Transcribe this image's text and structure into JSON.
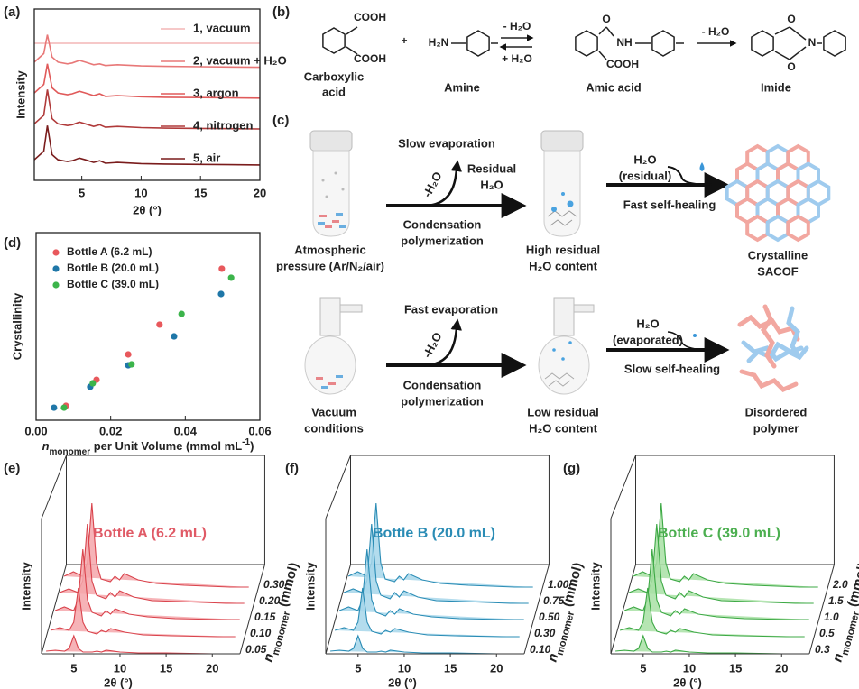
{
  "panel_labels": [
    "(a)",
    "(b)",
    "(c)",
    "(d)",
    "(e)",
    "(f)",
    "(g)"
  ],
  "chart_data": [
    {
      "type": "line",
      "xlabel": "2θ (°)",
      "ylabel": "Intensity",
      "x": [
        1,
        1.8,
        2.1,
        2.5,
        3,
        3.8,
        4.2,
        4.8,
        5.3,
        6,
        6.5,
        7,
        8,
        10,
        12,
        15,
        20
      ],
      "xlim": [
        1,
        20
      ],
      "xticks": [
        5,
        10,
        15,
        20
      ],
      "ylim": [
        0,
        100
      ],
      "series": [
        {
          "name": "1, vacuum",
          "color": "#f4b6b6",
          "values": [
            80,
            80,
            80,
            80,
            80,
            80,
            80,
            80,
            80,
            80,
            80,
            80,
            80,
            80,
            80,
            80,
            80
          ]
        },
        {
          "name": "2, vacuum + H₂O",
          "color": "#e87878",
          "values": [
            69,
            74,
            85,
            72,
            69,
            68,
            68.5,
            70,
            69,
            67.5,
            68,
            67,
            67.5,
            66.8,
            66.5,
            66.3,
            66
          ]
        },
        {
          "name": "3, argon",
          "color": "#e05a5a",
          "values": [
            51,
            56,
            68,
            54,
            51,
            50,
            50.5,
            52,
            51,
            49.5,
            50.5,
            49,
            49.5,
            48.8,
            48.5,
            48.3,
            48
          ]
        },
        {
          "name": "4, nitrogen",
          "color": "#b03a3a",
          "values": [
            33,
            38,
            53,
            36,
            33,
            32,
            32.5,
            34,
            33,
            31.5,
            32.5,
            31,
            31.5,
            30.8,
            30.5,
            30.3,
            30
          ]
        },
        {
          "name": "5, air",
          "color": "#7a1c1c",
          "values": [
            12,
            17,
            32,
            15,
            12,
            11,
            11.5,
            13,
            12,
            10.5,
            11.5,
            10,
            10.5,
            9.8,
            9.5,
            9.3,
            9
          ]
        }
      ]
    },
    {
      "type": "scatter",
      "ylabel": "Crystallinity",
      "xlabel": [
        "n",
        "monomer",
        " per Unit Volume (mmol mL",
        "-1",
        ")"
      ],
      "xlim": [
        0,
        0.06
      ],
      "ylim": [
        0,
        1
      ],
      "xticks": [
        {
          "value": 0,
          "label": "0.00"
        },
        {
          "value": 0.02,
          "label": "0.02"
        },
        {
          "value": 0.04,
          "label": "0.04"
        },
        {
          "value": 0.06,
          "label": "0.06"
        }
      ],
      "series": [
        {
          "name": "Bottle A (6.2 mL)",
          "color": "#e8585c",
          "x": [
            0.008,
            0.0162,
            0.0247,
            0.0331,
            0.0498
          ],
          "values": [
            0.077,
            0.216,
            0.351,
            0.51,
            0.808
          ]
        },
        {
          "name": "Bottle B (20.0 mL)",
          "color": "#1f77a8",
          "x": [
            0.0048,
            0.0145,
            0.0247,
            0.037,
            0.0496
          ],
          "values": [
            0.067,
            0.178,
            0.293,
            0.447,
            0.673
          ]
        },
        {
          "name": "Bottle C (39.0 mL)",
          "color": "#3cb44b",
          "x": [
            0.0075,
            0.0152,
            0.0256,
            0.039,
            0.0523
          ],
          "values": [
            0.067,
            0.197,
            0.298,
            0.567,
            0.76
          ]
        }
      ]
    },
    {
      "type": "waterfall",
      "title": "Bottle A (6.2 mL)",
      "title_color": "#e05a66",
      "line_color": "#d9434c",
      "fill_color": "#f4a6aa",
      "xlabel": "2θ (°)",
      "ylabel": "Intensity",
      "zlabel": [
        "n",
        "monomer",
        " (mmol)"
      ],
      "x": [
        2,
        3,
        4,
        4.5,
        5,
        5.5,
        6,
        7,
        7.5,
        8,
        8.5,
        10,
        12,
        15,
        20,
        22
      ],
      "xlim": [
        1.5,
        23
      ],
      "xticks": [
        5,
        10,
        15,
        20
      ],
      "ylim": [
        0,
        100
      ],
      "series": [
        {
          "name": "0.05",
          "values": [
            3,
            4,
            3,
            6,
            20,
            6,
            2,
            2,
            3,
            2,
            4,
            2,
            1,
            1,
            0,
            0
          ]
        },
        {
          "name": "0.10",
          "values": [
            8,
            11,
            8,
            17,
            55,
            17,
            7,
            4,
            8,
            6,
            10,
            6,
            3,
            2,
            1,
            1
          ]
        },
        {
          "name": "0.15",
          "values": [
            12,
            16,
            12,
            24,
            80,
            24,
            10,
            6,
            12,
            8,
            14,
            8,
            5,
            3,
            2,
            2
          ]
        },
        {
          "name": "0.20",
          "values": [
            14,
            18,
            14,
            27,
            90,
            27,
            11,
            7,
            14,
            9,
            16,
            9,
            5,
            4,
            2,
            2
          ]
        },
        {
          "name": "0.30",
          "values": [
            14,
            19,
            14,
            29,
            95,
            29,
            11,
            8,
            14,
            10,
            17,
            10,
            6,
            4,
            2,
            2
          ]
        }
      ]
    },
    {
      "type": "waterfall",
      "title": "Bottle B (20.0 mL)",
      "title_color": "#2a8cb5",
      "line_color": "#2a8cb5",
      "fill_color": "#a6d6ea",
      "xlabel": "2θ (°)",
      "ylabel": "Intensity",
      "zlabel": [
        "n",
        "monomer",
        " (mmol)"
      ],
      "x": [
        2,
        3,
        4,
        4.5,
        5,
        5.5,
        6,
        7,
        7.5,
        8,
        8.5,
        10,
        12,
        15,
        20,
        22
      ],
      "xlim": [
        1.5,
        23
      ],
      "xticks": [
        5,
        10,
        15,
        20
      ],
      "ylim": [
        0,
        100
      ],
      "series": [
        {
          "name": "0.10",
          "values": [
            3,
            4,
            3,
            6,
            20,
            6,
            2,
            2,
            3,
            2,
            4,
            2,
            1,
            1,
            0,
            0
          ]
        },
        {
          "name": "0.30",
          "values": [
            8,
            11,
            8,
            17,
            55,
            17,
            7,
            4,
            8,
            6,
            10,
            6,
            3,
            2,
            1,
            1
          ]
        },
        {
          "name": "0.50",
          "values": [
            12,
            16,
            12,
            24,
            80,
            24,
            10,
            6,
            12,
            8,
            14,
            8,
            5,
            3,
            2,
            2
          ]
        },
        {
          "name": "0.75",
          "values": [
            14,
            18,
            14,
            27,
            90,
            27,
            11,
            7,
            14,
            9,
            16,
            9,
            5,
            4,
            2,
            2
          ]
        },
        {
          "name": "1.00",
          "values": [
            14,
            19,
            14,
            29,
            95,
            29,
            11,
            8,
            14,
            10,
            17,
            10,
            6,
            4,
            2,
            2
          ]
        }
      ]
    },
    {
      "type": "waterfall",
      "title": "Bottle C (39.0 mL)",
      "title_color": "#4caf50",
      "line_color": "#3ca844",
      "fill_color": "#a8e0a4",
      "xlabel": "2θ (°)",
      "ylabel": "Intensity",
      "zlabel": [
        "n",
        "monomer",
        " (mmol)"
      ],
      "x": [
        2,
        3,
        4,
        4.5,
        5,
        5.5,
        6,
        7,
        7.5,
        8,
        8.5,
        10,
        12,
        15,
        20,
        22
      ],
      "xlim": [
        1.5,
        23
      ],
      "xticks": [
        5,
        10,
        15,
        20
      ],
      "ylim": [
        0,
        100
      ],
      "series": [
        {
          "name": "0.3",
          "values": [
            3,
            4,
            3,
            6,
            20,
            6,
            2,
            2,
            3,
            2,
            4,
            2,
            1,
            1,
            0,
            0
          ]
        },
        {
          "name": "0.5",
          "values": [
            8,
            11,
            8,
            17,
            55,
            17,
            7,
            4,
            8,
            6,
            10,
            6,
            3,
            2,
            1,
            1
          ]
        },
        {
          "name": "1.0",
          "values": [
            12,
            16,
            12,
            24,
            80,
            24,
            10,
            6,
            12,
            8,
            14,
            8,
            5,
            3,
            2,
            2
          ]
        },
        {
          "name": "1.5",
          "values": [
            14,
            18,
            14,
            27,
            90,
            27,
            11,
            7,
            14,
            9,
            16,
            9,
            5,
            4,
            2,
            2
          ]
        },
        {
          "name": "2.0",
          "values": [
            14,
            19,
            14,
            29,
            95,
            29,
            11,
            8,
            14,
            10,
            17,
            10,
            6,
            4,
            2,
            2
          ]
        }
      ]
    }
  ],
  "scheme_b": {
    "labels": [
      "COOH",
      "COOH",
      "+",
      "H₂N",
      "- H₂O",
      "+ H₂O",
      "O",
      "NH",
      "COOH",
      "- H₂O",
      "O",
      "O",
      "N",
      "Carboxylic",
      "acid",
      "Amine",
      "Amic acid",
      "Imide"
    ]
  },
  "scheme_c": {
    "top": [
      "Slow evaporation",
      "Residual",
      "H₂O",
      "-H₂O",
      "Condensation",
      "polymerization",
      "Atmospheric",
      "pressure (Ar/N₂/air)",
      "High residual",
      "H₂O content",
      "H₂O",
      "(residual)",
      "Fast self-healing",
      "Crystalline",
      "SACOF"
    ],
    "bottom": [
      "Fast evaporation",
      "-H₂O",
      "Condensation",
      "polymerization",
      "Vacuum",
      "conditions",
      "Low residual",
      "H₂O content",
      "H₂O",
      "(evaporated)",
      "Slow self-healing",
      "Disordered",
      "polymer"
    ]
  }
}
